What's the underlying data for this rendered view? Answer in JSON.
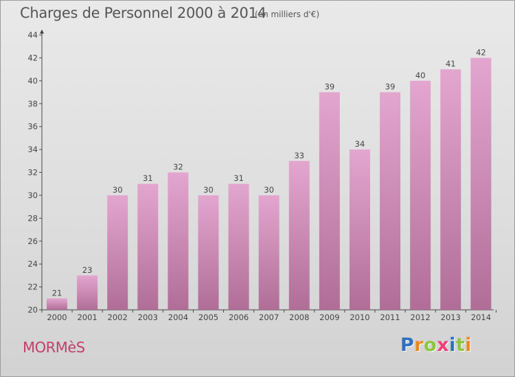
{
  "header": {
    "title": "Charges de Personnel 2000 à 2014",
    "subtitle": "(en milliers d'€)"
  },
  "footer": {
    "town": "MORMèS",
    "logo_letters": [
      "P",
      "r",
      "o",
      "x",
      "i",
      "t",
      "i"
    ]
  },
  "colors": {
    "bar_top": "#e3a6cf",
    "bar_bottom": "#b06e97",
    "town": "#c0406b",
    "logo": [
      "#2f6fbf",
      "#e9891f",
      "#8cc63f",
      "#ef3f77",
      "#2f6fbf",
      "#8cc63f",
      "#e9891f"
    ]
  },
  "chart_data": {
    "type": "bar",
    "title": "Charges de Personnel 2000 à 2014",
    "subtitle": "(en milliers d'€)",
    "categories": [
      "2000",
      "2001",
      "2002",
      "2003",
      "2004",
      "2005",
      "2006",
      "2007",
      "2008",
      "2009",
      "2010",
      "2011",
      "2012",
      "2013",
      "2014"
    ],
    "values": [
      21,
      23,
      30,
      31,
      32,
      30,
      31,
      30,
      33,
      39,
      34,
      39,
      40,
      41,
      42
    ],
    "ylim": [
      20,
      44
    ],
    "yticks": [
      20,
      22,
      24,
      26,
      28,
      30,
      32,
      34,
      36,
      38,
      40,
      42,
      44
    ],
    "grid": false,
    "legend": "none"
  }
}
